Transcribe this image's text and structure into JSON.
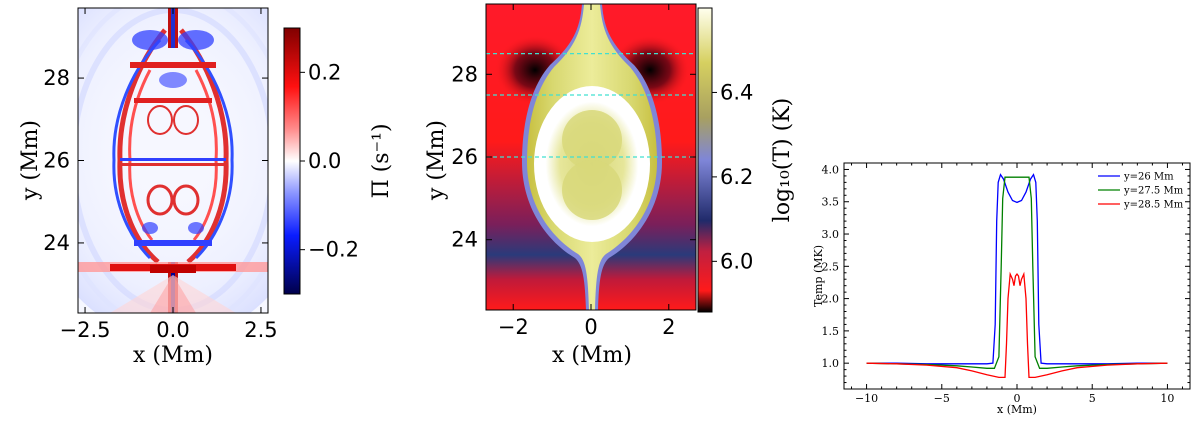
{
  "chart_data": [
    {
      "type": "heatmap",
      "xlabel": "x (Mm)",
      "ylabel": "y (Mm)",
      "xlim": [
        -2.7,
        2.7
      ],
      "ylim": [
        22.3,
        29.7
      ],
      "xticks": [
        -2.5,
        0.0,
        2.5
      ],
      "xtick_labels": [
        "−2.5",
        "0.0",
        "2.5"
      ],
      "yticks": [
        24,
        26,
        28
      ],
      "ytick_labels": [
        "24",
        "26",
        "28"
      ],
      "colorbar": {
        "label": "Π (s⁻¹)",
        "range": [
          -0.3,
          0.3
        ],
        "ticks": [
          -0.2,
          0.0,
          0.2
        ],
        "tick_labels": [
          "−0.2",
          "0.0",
          "0.2"
        ],
        "colormap": "seismic"
      },
      "colors": {
        "neg": "#00006e",
        "neg_mid": "#3c4cff",
        "zero": "#ffffff",
        "pos_mid": "#ff3c3c",
        "pos": "#800000"
      }
    },
    {
      "type": "heatmap",
      "xlabel": "x (Mm)",
      "ylabel": "y (Mm)",
      "xlim": [
        -2.7,
        2.7
      ],
      "ylim": [
        22.3,
        29.7
      ],
      "xticks": [
        -2,
        0,
        2
      ],
      "xtick_labels": [
        "−2",
        "0",
        "2"
      ],
      "yticks": [
        24,
        26,
        28
      ],
      "ytick_labels": [
        "24",
        "26",
        "28"
      ],
      "reference_lines_y": [
        26.0,
        27.5,
        28.5
      ],
      "reference_line_color": "#40e0d0",
      "colorbar": {
        "label": "log₁₀(T) (K)",
        "range": [
          5.88,
          6.6
        ],
        "ticks": [
          6.0,
          6.2,
          6.4
        ],
        "tick_labels": [
          "6.0",
          "6.2",
          "6.4"
        ],
        "colormap": "black-red-blue-yellow-white"
      },
      "colors": {
        "c0": "#000000",
        "c1": "#ff1a1a",
        "c2": "#2a3a7a",
        "c3": "#7f86d8",
        "c4": "#c8c040",
        "c5": "#ffffff"
      }
    },
    {
      "type": "line",
      "xlabel": "x (Mm)",
      "ylabel": "Temp (MK)",
      "xlim": [
        -11.5,
        11.5
      ],
      "ylim": [
        0.6,
        4.1
      ],
      "xticks": [
        -10,
        -5,
        0,
        5,
        10
      ],
      "xtick_labels": [
        "−10",
        "−5",
        "0",
        "5",
        "10"
      ],
      "yticks": [
        1.0,
        1.5,
        2.0,
        2.5,
        3.0,
        3.5,
        4.0
      ],
      "ytick_labels": [
        "1.0",
        "1.5",
        "2.0",
        "2.5",
        "3.0",
        "3.5",
        "4.0"
      ],
      "legend_position": "top-right",
      "series": [
        {
          "name": "y=26 Mm",
          "color": "#0000ff",
          "x": [
            -10,
            -8,
            -6,
            -4,
            -3,
            -2,
            -1.6,
            -1.45,
            -1.35,
            -1.25,
            -1.1,
            -0.9,
            -0.6,
            -0.3,
            0,
            0.3,
            0.6,
            0.9,
            1.1,
            1.25,
            1.35,
            1.45,
            1.6,
            2,
            3,
            4,
            6,
            8,
            10
          ],
          "values": [
            1.0,
            1.0,
            0.99,
            0.99,
            0.99,
            0.99,
            1.0,
            1.6,
            3.2,
            3.8,
            3.92,
            3.85,
            3.65,
            3.52,
            3.49,
            3.52,
            3.65,
            3.85,
            3.92,
            3.8,
            3.2,
            1.6,
            1.0,
            0.99,
            0.99,
            0.99,
            0.99,
            1.0,
            1.0
          ]
        },
        {
          "name": "y=27.5 Mm",
          "color": "#008000",
          "x": [
            -10,
            -8,
            -6,
            -4,
            -3,
            -2,
            -1.5,
            -1.2,
            -1.05,
            -0.95,
            -0.8,
            -0.5,
            0,
            0.5,
            0.8,
            0.95,
            1.05,
            1.2,
            1.5,
            2,
            3,
            4,
            6,
            8,
            10
          ],
          "values": [
            1.0,
            0.99,
            0.98,
            0.96,
            0.94,
            0.92,
            0.92,
            1.1,
            2.5,
            3.55,
            3.88,
            3.88,
            3.88,
            3.88,
            3.88,
            3.55,
            2.5,
            1.1,
            0.92,
            0.92,
            0.94,
            0.96,
            0.98,
            0.99,
            1.0
          ]
        },
        {
          "name": "y=28.5 Mm",
          "color": "#ff0000",
          "x": [
            -10,
            -8,
            -6,
            -4,
            -3,
            -2,
            -1.2,
            -0.8,
            -0.7,
            -0.6,
            -0.45,
            -0.3,
            -0.2,
            -0.1,
            0,
            0.1,
            0.2,
            0.3,
            0.45,
            0.6,
            0.7,
            0.8,
            1.2,
            2,
            3,
            4,
            6,
            8,
            10
          ],
          "values": [
            1.0,
            0.99,
            0.97,
            0.93,
            0.88,
            0.82,
            0.78,
            0.78,
            1.3,
            2.0,
            2.38,
            2.3,
            2.2,
            2.35,
            2.38,
            2.35,
            2.2,
            2.3,
            2.38,
            2.0,
            1.3,
            0.78,
            0.78,
            0.82,
            0.88,
            0.93,
            0.97,
            0.99,
            1.0
          ]
        }
      ]
    }
  ]
}
